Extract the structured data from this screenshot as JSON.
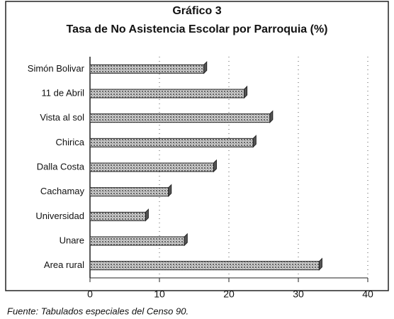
{
  "chart_data": {
    "type": "bar",
    "orientation": "horizontal",
    "title": "Gráfico 3",
    "subtitle": "Tasa de No Asistencia Escolar por Parroquia (%)",
    "categories": [
      "Simón Bolivar",
      "11 de Abril",
      "Vista al sol",
      "Chirica",
      "Dalla Costa",
      "Cachamay",
      "Universidad",
      "Unare",
      "Area rural"
    ],
    "values": [
      16.4,
      22.2,
      25.9,
      23.5,
      17.8,
      11.3,
      8,
      13.6,
      33
    ],
    "color": "#9a9a9a",
    "xlim": [
      0,
      40
    ],
    "xticks": [
      0,
      10,
      20,
      30,
      40
    ],
    "grid": true,
    "source": "Fuente: Tabulados especiales del Censo 90."
  }
}
